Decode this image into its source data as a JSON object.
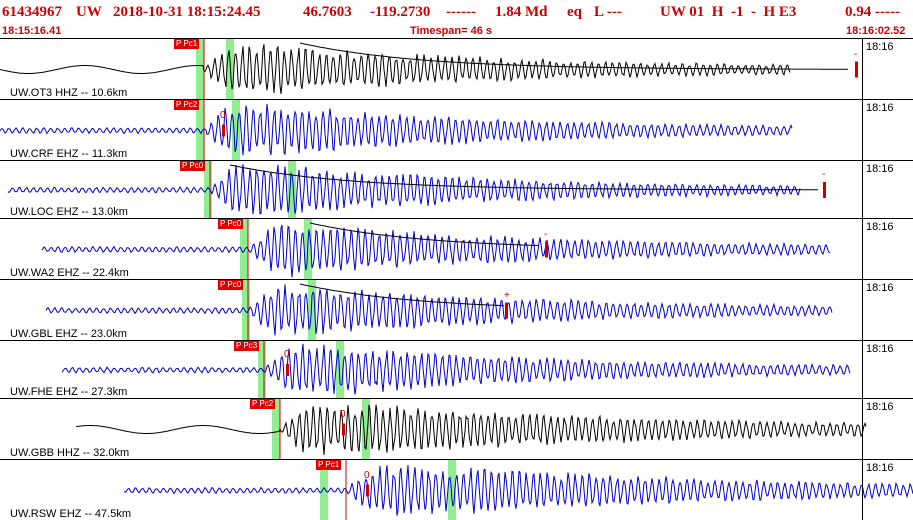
{
  "header": {
    "event_id": "61434967",
    "network": "UW",
    "datetime": "2018-10-31 18:15:24.45",
    "lat": "46.7603",
    "lon": "-119.2730",
    "dashes1": "------",
    "magnitude": "1.84 Md",
    "etype": "eq",
    "loc_flag": "L ---",
    "qual": "UW 01  H  -1  -  H E3",
    "rms": "0.94 -----"
  },
  "subheader": {
    "start_time": "18:15:16.41",
    "timespan": "Timespan=  46 s",
    "end_time": "18:16:02.52"
  },
  "traces": [
    {
      "station": "UW.OT3 HHZ -- 10.6km",
      "time": "18:16",
      "color": "#000000",
      "pick": "P Pc1",
      "amp_label": "-",
      "coda": true
    },
    {
      "station": "UW.CRF EHZ -- 11.3km",
      "time": "18:16",
      "color": "#0000cc",
      "pick": "P Pc2",
      "amp_label": "0",
      "coda": false
    },
    {
      "station": "UW.LOC EHZ -- 13.0km",
      "time": "18:16",
      "color": "#0000cc",
      "pick": "P Pc0",
      "amp_label": "-",
      "coda": true
    },
    {
      "station": "UW.WA2 EHZ -- 22.4km",
      "time": "18:16",
      "color": "#0000cc",
      "pick": "P Pc0",
      "amp_label": "-",
      "coda": true
    },
    {
      "station": "UW.GBL EHZ -- 23.0km",
      "time": "18:16",
      "color": "#0000cc",
      "pick": "P Pc0",
      "amp_label": "+",
      "coda": true
    },
    {
      "station": "UW.FHE EHZ -- 27.3km",
      "time": "18:16",
      "color": "#0000cc",
      "pick": "P Pc3",
      "amp_label": "0",
      "coda": false
    },
    {
      "station": "UW.GBB HHZ -- 32.0km",
      "time": "18:16",
      "color": "#000000",
      "pick": "P Pc2",
      "amp_label": "0",
      "coda": false
    },
    {
      "station": "UW.RSW EHZ -- 47.5km",
      "time": "18:16",
      "color": "#0000cc",
      "pick": "P Pc1",
      "amp_label": "0",
      "coda": false
    }
  ]
}
